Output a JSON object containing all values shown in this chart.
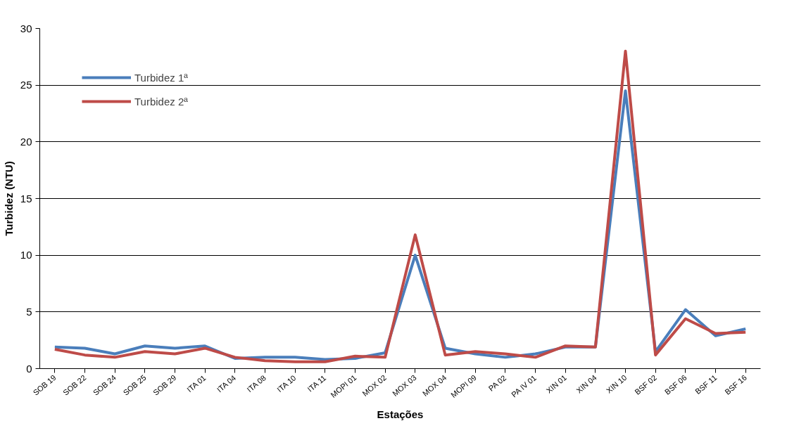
{
  "chart_data": {
    "type": "line",
    "xlabel": "Estações",
    "ylabel": "Turbidez (NTU)",
    "categories": [
      "SOB 19",
      "SOB 22",
      "SOB 24",
      "SOB 25",
      "SOB 29",
      "ITA 01",
      "ITA 04",
      "ITA 08",
      "ITA 10",
      "ITA 11",
      "MOPI 01",
      "MOX 02",
      "MOX 03",
      "MOX 04",
      "MOPI 09",
      "PA 02",
      "PA IV 01",
      "XIN 01",
      "XIN 04",
      "XIN 10",
      "BSF 02",
      "BSF 06",
      "BSF 11",
      "BSF 16"
    ],
    "series": [
      {
        "name": "Turbidez 1ª",
        "color": "#4a7ebb",
        "values": [
          1.9,
          1.8,
          1.3,
          2.0,
          1.8,
          2.0,
          0.9,
          1.0,
          1.0,
          0.8,
          0.9,
          1.4,
          10.0,
          1.8,
          1.3,
          1.0,
          1.3,
          1.9,
          1.9,
          24.5,
          1.5,
          5.2,
          2.9,
          3.5
        ]
      },
      {
        "name": "Turbidez 2ª",
        "color": "#be4b48",
        "values": [
          1.7,
          1.2,
          1.0,
          1.5,
          1.3,
          1.8,
          1.0,
          0.7,
          0.6,
          0.6,
          1.1,
          1.0,
          11.8,
          1.2,
          1.5,
          1.3,
          1.0,
          2.0,
          1.9,
          28.0,
          1.2,
          4.4,
          3.1,
          3.2
        ]
      }
    ],
    "ylim": [
      0,
      30
    ],
    "yticks": [
      0,
      5,
      10,
      15,
      20,
      25,
      30
    ],
    "grid": "y",
    "legend": "top left",
    "marker": "none",
    "line_style": "solid"
  }
}
